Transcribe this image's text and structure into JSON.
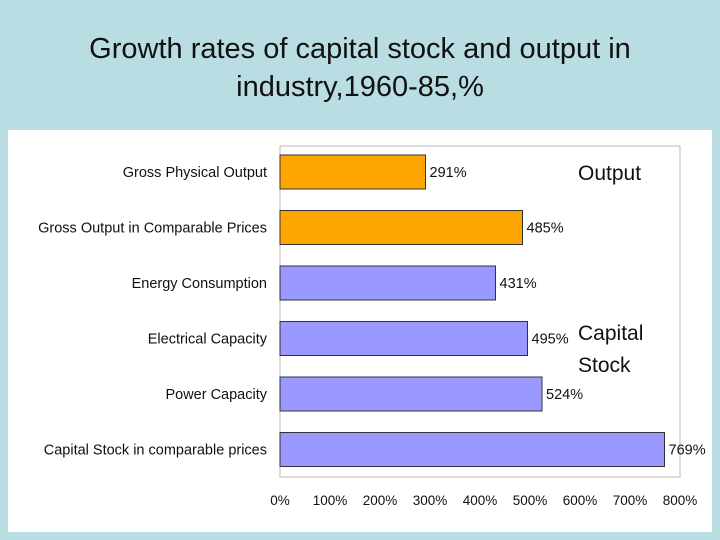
{
  "slide": {
    "title_line1": "Growth rates of capital stock and output in",
    "title_line2": "industry,1960-85,%"
  },
  "chart_data": {
    "type": "bar",
    "orientation": "horizontal",
    "categories": [
      "Gross Physical Output",
      "Gross Output in Comparable Prices",
      "Energy Consumption",
      "Electrical Capacity",
      "Power Capacity",
      "Capital Stock in comparable prices"
    ],
    "values": [
      291,
      485,
      431,
      495,
      524,
      769
    ],
    "value_labels": [
      "291%",
      "485%",
      "431%",
      "495%",
      "524%",
      "769%"
    ],
    "groups": [
      "Output",
      "Output",
      "Capital Stock",
      "Capital Stock",
      "Capital Stock",
      "Capital Stock"
    ],
    "group_colors": {
      "Output": "#ffa500",
      "Capital Stock": "#9999ff"
    },
    "annotations": {
      "output": "Output",
      "capital_line1": "Capital",
      "capital_line2": "Stock"
    },
    "xlim": [
      0,
      800
    ],
    "xticks": [
      0,
      100,
      200,
      300,
      400,
      500,
      600,
      700,
      800
    ],
    "xtick_labels": [
      "0%",
      "100%",
      "200%",
      "300%",
      "400%",
      "500%",
      "600%",
      "700%",
      "800%"
    ],
    "grid": false,
    "bar_edge_color": "#333333"
  }
}
